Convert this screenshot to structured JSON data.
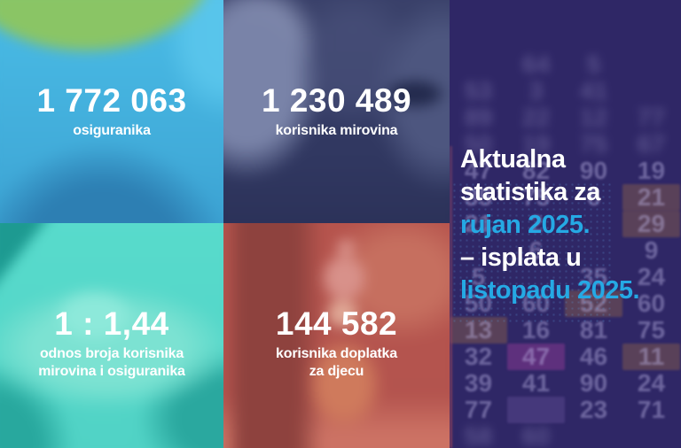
{
  "title_block": {
    "lines": [
      {
        "text": "Aktualna",
        "accent": false
      },
      {
        "text": "statistika za",
        "accent": false
      },
      {
        "text": "rujan 2025.",
        "accent": true
      },
      {
        "text": "– isplata u",
        "accent": false
      },
      {
        "text": "listopadu 2025.",
        "accent": true
      }
    ],
    "accent_color": "#25a9e4"
  },
  "stats": [
    {
      "value": "1 772 063",
      "label": "osiguranika",
      "label2": ""
    },
    {
      "value": "1 230 489",
      "label": "korisnika mirovina",
      "label2": ""
    },
    {
      "value": "1 : 1,44",
      "label": "odnos broja korisnika",
      "label2": "mirovina i osiguranika"
    },
    {
      "value": "144 582",
      "label": "korisnika doplatka",
      "label2": "za djecu"
    }
  ],
  "chart_data": {
    "type": "table",
    "title": "Aktualna statistika za rujan 2025. – isplata u listopadu 2025.",
    "rows": [
      {
        "label": "osiguranika",
        "value": 1772063
      },
      {
        "label": "korisnika mirovina",
        "value": 1230489
      },
      {
        "label": "odnos broja korisnika mirovina i osiguranika",
        "value": "1 : 1,44"
      },
      {
        "label": "korisnika doplatka za djecu",
        "value": 144582
      }
    ]
  },
  "colors": {
    "accent_blue": "#25a9e4",
    "overlay_top_left": "#45b5e0",
    "overlay_top_right": "#363d66",
    "overlay_bottom_left": "#55d7c9",
    "overlay_bottom_center": "#b7554d",
    "panel_purple": "#2f2766",
    "text_white": "#ffffff"
  },
  "background_numbers": {
    "rows": [
      [
        {
          "t": ""
        },
        {
          "t": "64"
        },
        {
          "t": "5"
        },
        {
          "t": ""
        }
      ],
      [
        {
          "t": "53"
        },
        {
          "t": "3"
        },
        {
          "t": "41"
        },
        {
          "t": ""
        }
      ],
      [
        {
          "t": "89"
        },
        {
          "t": "22"
        },
        {
          "t": "12"
        },
        {
          "t": "77"
        }
      ],
      [
        {
          "t": "50"
        },
        {
          "t": "19"
        },
        {
          "t": "75"
        },
        {
          "t": "67"
        }
      ],
      [
        {
          "t": "47"
        },
        {
          "t": "82"
        },
        {
          "t": "90"
        },
        {
          "t": "19"
        }
      ],
      [
        {
          "t": "35"
        },
        {
          "t": "75"
        },
        {
          "t": "6"
        },
        {
          "t": "21",
          "h": "warm"
        }
      ],
      [
        {
          "t": "21"
        },
        {
          "t": "2"
        },
        {
          "t": ""
        },
        {
          "t": "29",
          "h": "warm"
        }
      ],
      [
        {
          "t": ""
        },
        {
          "t": "6"
        },
        {
          "t": ""
        },
        {
          "t": "9"
        }
      ],
      [
        {
          "t": "5"
        },
        {
          "t": ""
        },
        {
          "t": "35"
        },
        {
          "t": "24"
        }
      ],
      [
        {
          "t": "50"
        },
        {
          "t": "60"
        },
        {
          "t": "52",
          "h": "warm"
        },
        {
          "t": "60"
        }
      ],
      [
        {
          "t": "13",
          "h": "warm"
        },
        {
          "t": "16"
        },
        {
          "t": "81"
        },
        {
          "t": "75"
        }
      ],
      [
        {
          "t": "32"
        },
        {
          "t": "47",
          "h": "pink"
        },
        {
          "t": "46"
        },
        {
          "t": "11",
          "h": "warm"
        }
      ],
      [
        {
          "t": "39"
        },
        {
          "t": "41"
        },
        {
          "t": "90"
        },
        {
          "t": "24"
        }
      ],
      [
        {
          "t": "77"
        },
        {
          "t": "",
          "h": "bar"
        },
        {
          "t": "23"
        },
        {
          "t": "71"
        }
      ],
      [
        {
          "t": "58"
        },
        {
          "t": "60"
        },
        {
          "t": ""
        },
        {
          "t": ""
        }
      ]
    ]
  }
}
